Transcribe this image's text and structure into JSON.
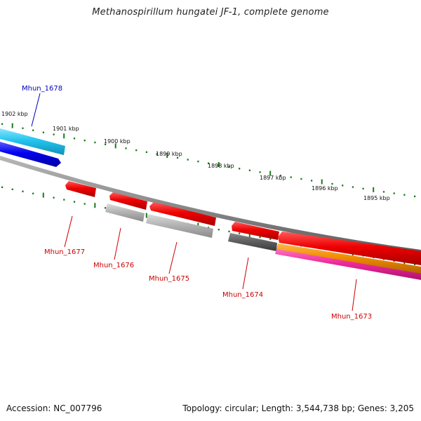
{
  "title": "Methanospirillum hungatei JF-1, complete genome",
  "footer": {
    "accession": "Accession: NC_007796",
    "info": "Topology: circular; Length: 3,544,738 bp; Genes: 3,205"
  },
  "ruler": {
    "labels": [
      "1902 kbp",
      "1901 kbp",
      "1900 kbp",
      "1899 kbp",
      "1898 kbp",
      "1897 kbp",
      "1896 kbp",
      "1895 kbp"
    ]
  },
  "gene_labels": {
    "mhun_1678": "Mhun_1678",
    "mhun_1677": "Mhun_1677",
    "mhun_1676": "Mhun_1676",
    "mhun_1675": "Mhun_1675",
    "mhun_1674": "Mhun_1674",
    "mhun_1673": "Mhun_1673"
  },
  "colors": {
    "forward_gene": "#0000ee",
    "forward_feature": "#22c4ee",
    "reverse_gene": "#ee0000",
    "reverse_feature_light": "#b4b4b4",
    "reverse_feature_dark": "#606060",
    "orange_feature": "#f08c00",
    "pink_feature": "#ee2a9a",
    "backbone": "#8a8a8a",
    "tick": "#1a7a1a",
    "forward_label": "#0000bb",
    "reverse_label": "#cc0000"
  }
}
